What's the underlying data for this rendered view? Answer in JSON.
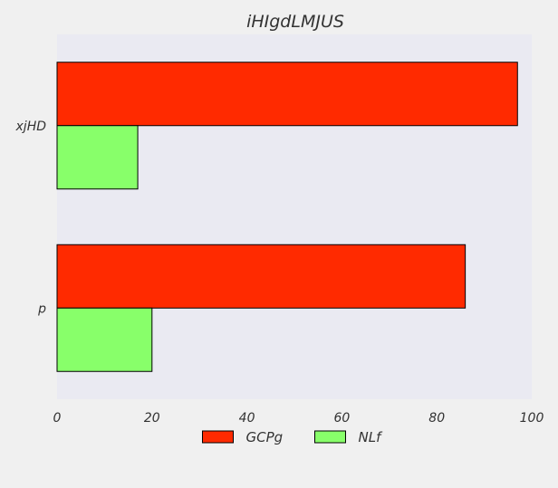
{
  "chart_data": {
    "type": "bar",
    "orientation": "horizontal",
    "title": "iHIgdLMJUS",
    "xlabel": "",
    "ylabel": "",
    "categories": [
      "xjHD",
      "p"
    ],
    "series": [
      {
        "name": "GCPg",
        "values": [
          97,
          86
        ],
        "color": "#ff2a00"
      },
      {
        "name": "NLf",
        "values": [
          17,
          20
        ],
        "color": "#88ff6a"
      }
    ],
    "xlim": [
      0,
      100
    ],
    "xticks": [
      0,
      20,
      40,
      60,
      80,
      100
    ],
    "grid": false,
    "legend_position": "bottom-center",
    "plot_background": "#eaeaf2",
    "figure_background": "#f0f0f0",
    "bar_edge_color": "#000000"
  }
}
